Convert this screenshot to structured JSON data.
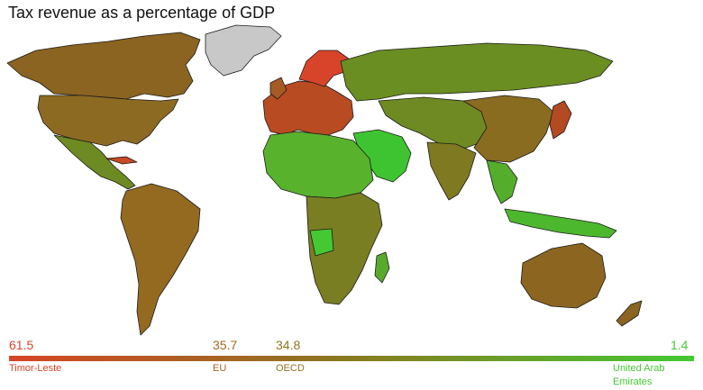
{
  "title": "Tax revenue as a percentage of GDP",
  "legend": {
    "markers": [
      {
        "value": "61.5",
        "label": "Timor-Leste"
      },
      {
        "value": "35.7",
        "label": "EU"
      },
      {
        "value": "34.8",
        "label": "OECD"
      },
      {
        "value": "1.4",
        "label": "United Arab\nEmirates"
      }
    ],
    "scale_min": 1.4,
    "scale_max": 61.5
  },
  "colors": {
    "high": "#d64525",
    "mid": "#8f7320",
    "low": "#44c933",
    "no_data": "#c8c8c8"
  }
}
